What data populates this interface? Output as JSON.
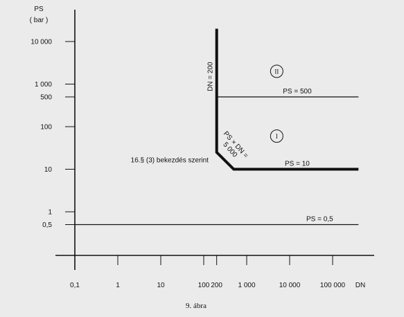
{
  "chart_data": {
    "type": "line",
    "title": "",
    "caption": "9.  ábra",
    "xlabel": "DN",
    "ylabel": "PS",
    "ylabel_unit": "( bar )",
    "x_scale": "log",
    "y_scale": "log",
    "xlim": [
      0.1,
      500000
    ],
    "ylim": [
      0.1,
      30000
    ],
    "grid": false,
    "x_ticks": [
      {
        "value": 0.1,
        "label": "0,1"
      },
      {
        "value": 1,
        "label": "1"
      },
      {
        "value": 10,
        "label": "10"
      },
      {
        "value": 100,
        "label": "100"
      },
      {
        "value": 200,
        "label": "200"
      },
      {
        "value": 1000,
        "label": "1 000"
      },
      {
        "value": 10000,
        "label": "10 000"
      },
      {
        "value": 100000,
        "label": "100 000"
      }
    ],
    "y_ticks": [
      {
        "value": 0.5,
        "label": "0,5"
      },
      {
        "value": 1,
        "label": "1"
      },
      {
        "value": 10,
        "label": "10"
      },
      {
        "value": 100,
        "label": "100"
      },
      {
        "value": 500,
        "label": "500"
      },
      {
        "value": 1000,
        "label": "1 000"
      },
      {
        "value": 10000,
        "label": "10 000"
      }
    ],
    "series": [
      {
        "name": "PS = 0,5",
        "style": "thin",
        "x": [
          0.1,
          400000
        ],
        "y": [
          0.5,
          0.5
        ]
      },
      {
        "name": "PS = 500",
        "style": "thin",
        "x": [
          200,
          400000
        ],
        "y": [
          500,
          500
        ]
      },
      {
        "name": "DN = 200",
        "style": "thick",
        "x": [
          200,
          200,
          500,
          400000
        ],
        "y": [
          20000,
          25,
          10,
          10
        ]
      }
    ],
    "annotations": [
      {
        "text": "PS = 0,5",
        "x": 50000,
        "y": 0.5,
        "angle": 0
      },
      {
        "text": "PS = 500",
        "x": 15000,
        "y": 500,
        "angle": 0
      },
      {
        "text": "PS = 10",
        "x": 15000,
        "y": 10,
        "angle": 0
      },
      {
        "text": "DN = 200",
        "x": 200,
        "y": 1500,
        "angle": -90
      },
      {
        "text": "16.§ (3) bekezdés szerint",
        "x": 2,
        "y": 12,
        "angle": 0
      }
    ],
    "diagonal_label": [
      "PS × DN =",
      "5 000"
    ],
    "regions": [
      {
        "label": "II",
        "x": 5000,
        "y": 2000
      },
      {
        "label": "I",
        "x": 5000,
        "y": 60
      }
    ]
  }
}
